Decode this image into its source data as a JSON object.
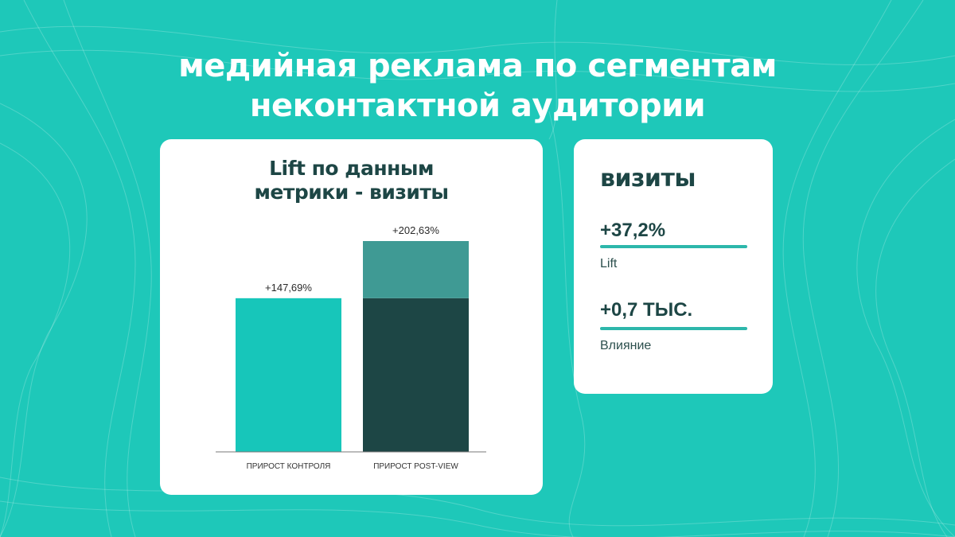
{
  "title": {
    "line1": "медийная реклама по сегментам",
    "line2": "неконтактной аудитории"
  },
  "colors": {
    "background": "#1ec8b9",
    "card": "#ffffff",
    "dark": "#1d4645",
    "control_bar": "#17c6ba",
    "lift_segment": "#3f9a94",
    "accent_line": "#2db7ab"
  },
  "chart_data": {
    "type": "bar",
    "title": [
      "Lift по данным",
      "метрики - визиты"
    ],
    "categories": [
      "ПРИРОСТ КОНТРОЛЯ",
      "ПРИРОСТ POST-VIEW"
    ],
    "values": [
      147.69,
      202.63
    ],
    "labels": [
      "+147,69%",
      "+202,63%"
    ],
    "ylim": [
      0,
      220
    ],
    "stacked_split": {
      "category": "ПРИРОСТ POST-VIEW",
      "base": 147.69,
      "lift": 54.94
    }
  },
  "stats": {
    "heading": "визиты",
    "items": [
      {
        "value": "+37,2%",
        "label": "Lift"
      },
      {
        "value": "+0,7 ТЫС.",
        "label": "Влияние"
      }
    ]
  }
}
